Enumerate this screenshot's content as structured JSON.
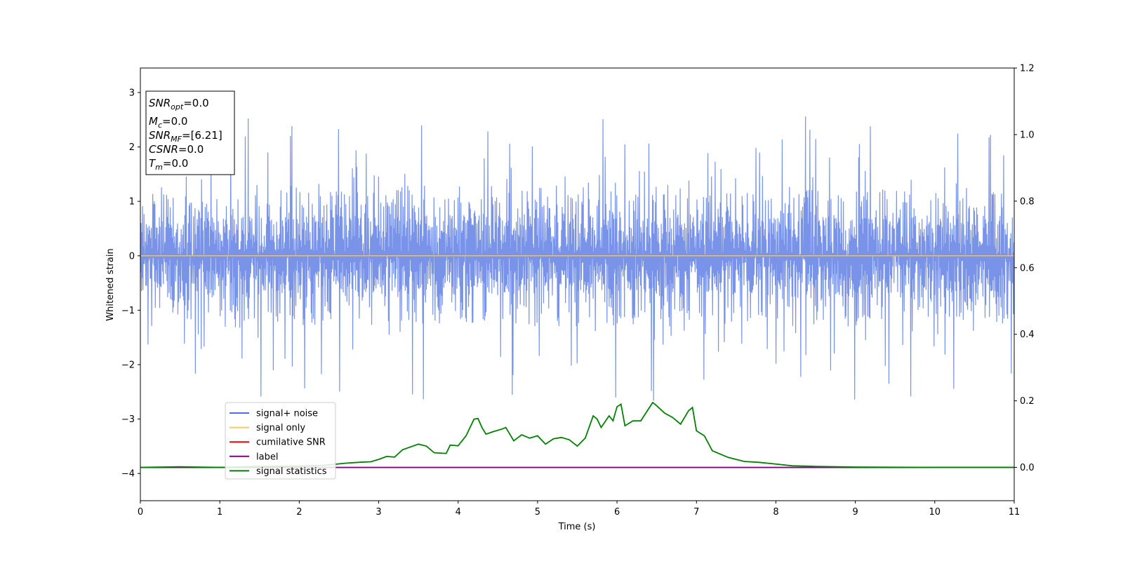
{
  "chart_data": {
    "type": "line",
    "xlabel": "Time (s)",
    "ylabel": "Whitened strain",
    "xlim": [
      0,
      11
    ],
    "ylim": [
      -4.5,
      3.45
    ],
    "y2lim": [
      -0.1,
      1.2
    ],
    "x_ticks": [
      0,
      1,
      2,
      3,
      4,
      5,
      6,
      7,
      8,
      9,
      10,
      11
    ],
    "y_ticks": [
      -4,
      -3,
      -2,
      -1,
      0,
      1,
      2,
      3
    ],
    "y2_ticks": [
      0.0,
      0.2,
      0.4,
      0.6,
      0.8,
      1.0,
      1.2
    ],
    "legend_position": "lower-left",
    "noise_band": {
      "low": -1.2,
      "high": 1.3,
      "peak_max": 2.45,
      "peak_min": -2.7
    },
    "series": [
      {
        "name": "signal+ noise",
        "color": "#4b6fe0",
        "axis": "left",
        "style": "noise"
      },
      {
        "name": "signal only",
        "color": "#fcc56b",
        "axis": "left",
        "x": [
          0,
          11
        ],
        "values": [
          0,
          0
        ]
      },
      {
        "name": "cumilative SNR",
        "color": "#ff0000",
        "axis": "right",
        "x": [],
        "values": []
      },
      {
        "name": "label",
        "color": "#800080",
        "axis": "right",
        "x": [
          0,
          11
        ],
        "values": [
          0,
          0
        ]
      },
      {
        "name": "signal statistics",
        "color": "#008000",
        "axis": "right",
        "x": [
          0,
          0.5,
          1.0,
          1.5,
          2.0,
          2.3,
          2.6,
          2.8,
          2.9,
          3.0,
          3.1,
          3.2,
          3.3,
          3.5,
          3.6,
          3.7,
          3.85,
          3.9,
          4.0,
          4.1,
          4.2,
          4.25,
          4.3,
          4.35,
          4.45,
          4.55,
          4.6,
          4.7,
          4.8,
          4.9,
          5.0,
          5.1,
          5.2,
          5.3,
          5.4,
          5.5,
          5.6,
          5.7,
          5.75,
          5.8,
          5.9,
          5.95,
          6.0,
          6.05,
          6.1,
          6.2,
          6.3,
          6.4,
          6.45,
          6.5,
          6.6,
          6.7,
          6.8,
          6.9,
          6.95,
          7.0,
          7.1,
          7.2,
          7.3,
          7.4,
          7.6,
          7.8,
          8.0,
          8.2,
          8.5,
          9.0,
          10.0,
          11.0
        ],
        "values": [
          0.0,
          0.002,
          0.0,
          0.003,
          0.004,
          0.006,
          0.013,
          0.016,
          0.017,
          0.024,
          0.033,
          0.031,
          0.053,
          0.07,
          0.064,
          0.044,
          0.042,
          0.067,
          0.065,
          0.095,
          0.145,
          0.147,
          0.12,
          0.1,
          0.108,
          0.115,
          0.12,
          0.08,
          0.098,
          0.088,
          0.095,
          0.07,
          0.086,
          0.09,
          0.083,
          0.064,
          0.088,
          0.155,
          0.145,
          0.12,
          0.155,
          0.14,
          0.182,
          0.19,
          0.125,
          0.14,
          0.14,
          0.177,
          0.195,
          0.185,
          0.163,
          0.15,
          0.13,
          0.17,
          0.18,
          0.11,
          0.095,
          0.05,
          0.04,
          0.03,
          0.018,
          0.015,
          0.01,
          0.005,
          0.003,
          0.001,
          0.0,
          0.0
        ]
      }
    ],
    "annotation": {
      "snr_opt": {
        "base": "SNR",
        "sub": "opt",
        "value": "=0.0"
      },
      "mc": {
        "base": "M",
        "sub": "c",
        "value": "=0.0"
      },
      "snr_mf": {
        "base": "SNR",
        "sub": "MF",
        "value": "=[6.21]"
      },
      "csnr": {
        "base": "CSNR",
        "value": "=0.0"
      },
      "tm": {
        "base": "T",
        "sub": "m",
        "value": "=0.0"
      }
    }
  }
}
